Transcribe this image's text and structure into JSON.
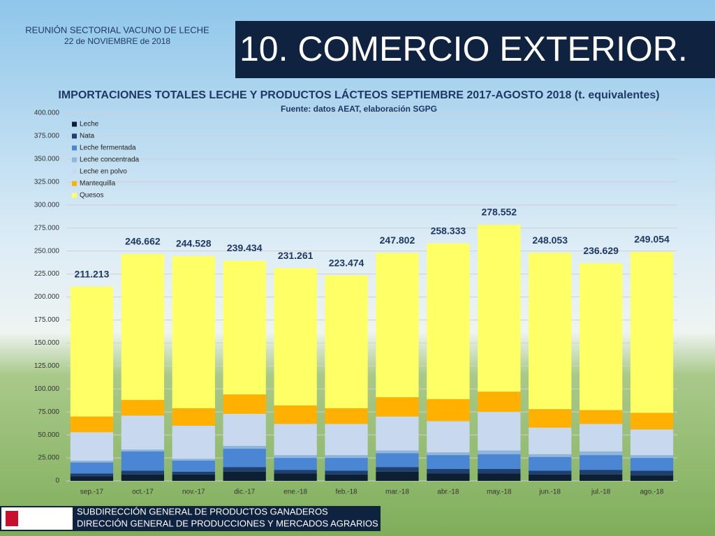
{
  "header": {
    "meeting": "REUNIÓN SECTORIAL VACUNO DE LECHE",
    "date": "22 de NOVIEMBRE de 2018",
    "section": "10. COMERCIO EXTERIOR."
  },
  "footer": {
    "line1": "SUBDIRECCIÓN GENERAL DE PRODUCTOS GANADEROS",
    "line2": "DIRECCIÓN GENERAL DE PRODUCCIONES Y MERCADOS AGRARIOS"
  },
  "chart_data": {
    "type": "stacked_bar",
    "title": "IMPORTACIONES TOTALES LECHE Y PRODUCTOS LÁCTEOS SEPTIEMBRE 2017-AGOSTO 2018 (t. equivalentes)",
    "subtitle": "Fuente: datos AEAT, elaboración SGPG",
    "categories": [
      "sep.-17",
      "oct.-17",
      "nov.-17",
      "dic.-17",
      "ene.-18",
      "feb.-18",
      "mar.-18",
      "abr.-18",
      "may.-18",
      "jun.-18",
      "jul.-18",
      "ago.-18"
    ],
    "series": [
      {
        "name": "Leche",
        "color": "#0d1f33",
        "values": [
          5000,
          7000,
          7000,
          10000,
          8000,
          7000,
          10000,
          8000,
          8000,
          7000,
          7000,
          6000
        ]
      },
      {
        "name": "Nata",
        "color": "#1f3f6e",
        "values": [
          3000,
          4000,
          3000,
          5000,
          4000,
          4000,
          5000,
          5000,
          5000,
          4000,
          5000,
          5000
        ]
      },
      {
        "name": "Leche fermentada",
        "color": "#4a86d4",
        "values": [
          12000,
          21000,
          12000,
          20000,
          13000,
          14000,
          15000,
          15000,
          16000,
          15000,
          16000,
          14000
        ]
      },
      {
        "name": "Leche concentrada",
        "color": "#8fb4de",
        "values": [
          2000,
          2000,
          2000,
          3000,
          3000,
          3000,
          3000,
          3000,
          4000,
          3000,
          4000,
          3000
        ]
      },
      {
        "name": "Leche en polvo",
        "color": "#c8d8ee",
        "values": [
          31000,
          37000,
          36000,
          35000,
          34000,
          34000,
          37000,
          34000,
          42000,
          29000,
          30000,
          28000
        ]
      },
      {
        "name": "Mantequilla",
        "color": "#ffb000",
        "values": [
          17000,
          17000,
          19000,
          21000,
          20000,
          17000,
          21000,
          24000,
          22000,
          20000,
          15000,
          18000
        ]
      },
      {
        "name": "Quesos",
        "color": "#ffff66",
        "values": [
          141213,
          158662,
          165528,
          145434,
          149261,
          144474,
          156802,
          169333,
          181552,
          170053,
          159629,
          175054
        ]
      }
    ],
    "totals": {
      "values": [
        211213,
        246662,
        244528,
        239434,
        231261,
        223474,
        247802,
        258333,
        278552,
        248053,
        236629,
        249054
      ],
      "value_labels": [
        "211.213",
        "246.662",
        "244.528",
        "239.434",
        "231.261",
        "223.474",
        "247.802",
        "258.333",
        "278.552",
        "248.053",
        "236.629",
        "249.054"
      ]
    },
    "ylim": [
      0,
      400000
    ],
    "yticks": [
      0,
      {
        "value": 25000,
        "label": "25.000"
      },
      {
        "value": 50000,
        "label": "50.000"
      },
      {
        "value": 75000,
        "label": "75.000"
      },
      {
        "value": 100000,
        "label": "100.000"
      },
      {
        "value": 125000,
        "label": "125.000"
      },
      {
        "value": 150000,
        "label": "150.000"
      },
      {
        "value": 175000,
        "label": "175.000"
      },
      {
        "value": 200000,
        "label": "200.000"
      },
      {
        "value": 225000,
        "label": "225.000"
      },
      {
        "value": 250000,
        "label": "250.000"
      },
      {
        "value": 275000,
        "label": "275.000"
      },
      {
        "value": 300000,
        "label": "300.000"
      },
      {
        "value": 325000,
        "label": "325.000"
      },
      {
        "value": 350000,
        "label": "350.000"
      },
      {
        "value": 375000,
        "label": "375.000"
      },
      {
        "value": 400000,
        "label": "400.000"
      }
    ],
    "grid": true,
    "legend": "top-left"
  }
}
